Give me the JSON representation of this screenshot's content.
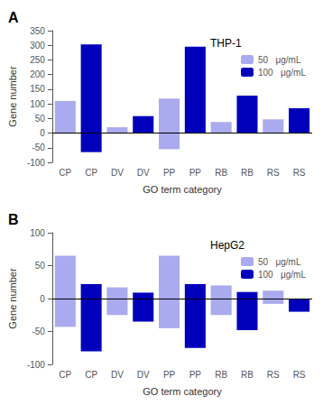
{
  "chart_data": [
    {
      "type": "bar",
      "title": "THP-1",
      "annotations": [
        "A"
      ],
      "xlabel": "GO term category",
      "ylabel": "Gene number",
      "categories": [
        "CP",
        "CP",
        "DV",
        "DV",
        "PP",
        "PP",
        "RB",
        "RB",
        "RS",
        "RS"
      ],
      "series": [
        {
          "name": "50   μg/mL",
          "color": "#aaaaee",
          "values": [
            110,
            null,
            20,
            null,
            118,
            null,
            38,
            null,
            47,
            null
          ],
          "negative_values": [
            0,
            null,
            0,
            null,
            -55,
            null,
            0,
            null,
            0,
            null
          ]
        },
        {
          "name": "100   μg/mL",
          "color": "#0000bb",
          "values": [
            null,
            303,
            null,
            58,
            null,
            295,
            null,
            128,
            null,
            85
          ],
          "negative_values": [
            null,
            -65,
            null,
            0,
            null,
            0,
            null,
            0,
            null,
            0
          ]
        }
      ],
      "ylim": [
        -100,
        350
      ],
      "yticks": [
        -100,
        -50,
        0,
        50,
        100,
        150,
        200,
        250,
        300,
        350
      ],
      "grid": false,
      "legend": "upper right"
    },
    {
      "type": "bar",
      "title": "HepG2",
      "annotations": [
        "B"
      ],
      "xlabel": "GO term category",
      "ylabel": "Gene number",
      "categories": [
        "CP",
        "CP",
        "DV",
        "DV",
        "PP",
        "PP",
        "RB",
        "RB",
        "RS",
        "RS"
      ],
      "series": [
        {
          "name": "50   μg/mL",
          "color": "#aaaaee",
          "values": [
            65,
            null,
            17,
            null,
            65,
            null,
            20,
            null,
            12,
            null
          ],
          "negative_values": [
            -43,
            null,
            -25,
            null,
            -45,
            null,
            -25,
            null,
            -8,
            null
          ]
        },
        {
          "name": "100   μg/mL",
          "color": "#0000bb",
          "values": [
            null,
            22,
            null,
            9,
            null,
            22,
            null,
            10,
            null,
            0
          ],
          "negative_values": [
            null,
            -80,
            null,
            -35,
            null,
            -75,
            null,
            -48,
            null,
            -20
          ]
        }
      ],
      "ylim": [
        -100,
        100
      ],
      "yticks": [
        -100,
        -50,
        0,
        50,
        100
      ],
      "grid": false,
      "legend": "upper right"
    }
  ]
}
